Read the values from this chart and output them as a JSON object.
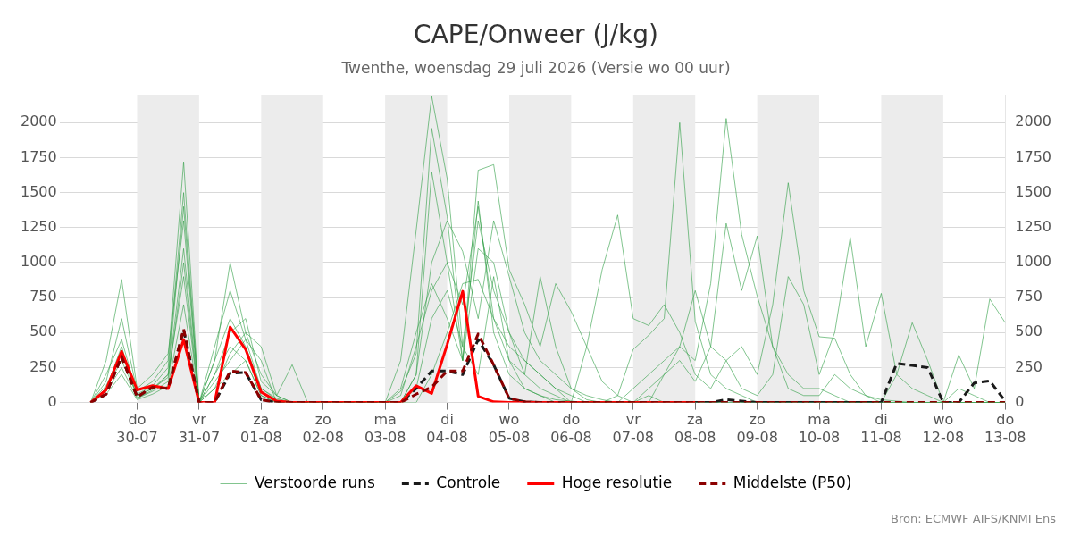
{
  "chart_data": {
    "type": "line",
    "title": "CAPE/Onweer (J/kg)",
    "subtitle": "Twenthe, woensdag 29 juli 2026 (Versie wo 00 uur)",
    "x": [
      "2026-07-29T06:00",
      "2026-07-29T12:00",
      "2026-07-29T18:00",
      "2026-07-30T00:00",
      "2026-07-30T06:00",
      "2026-07-30T12:00",
      "2026-07-30T18:00",
      "2026-07-31T00:00",
      "2026-07-31T06:00",
      "2026-07-31T12:00",
      "2026-07-31T18:00",
      "2026-08-01T00:00",
      "2026-08-01T06:00",
      "2026-08-01T12:00",
      "2026-08-01T18:00",
      "2026-08-02T00:00",
      "2026-08-02T06:00",
      "2026-08-02T12:00",
      "2026-08-02T18:00",
      "2026-08-03T00:00",
      "2026-08-03T06:00",
      "2026-08-03T12:00",
      "2026-08-03T18:00",
      "2026-08-04T00:00",
      "2026-08-04T06:00",
      "2026-08-04T12:00",
      "2026-08-04T18:00",
      "2026-08-05T00:00",
      "2026-08-05T06:00",
      "2026-08-05T12:00",
      "2026-08-05T18:00",
      "2026-08-06T00:00",
      "2026-08-06T06:00",
      "2026-08-06T12:00",
      "2026-08-06T18:00",
      "2026-08-07T00:00",
      "2026-08-07T06:00",
      "2026-08-07T12:00",
      "2026-08-07T18:00",
      "2026-08-08T00:00",
      "2026-08-08T06:00",
      "2026-08-08T12:00",
      "2026-08-08T18:00",
      "2026-08-09T00:00",
      "2026-08-09T06:00",
      "2026-08-09T12:00",
      "2026-08-09T18:00",
      "2026-08-10T00:00",
      "2026-08-10T06:00",
      "2026-08-10T12:00",
      "2026-08-10T18:00",
      "2026-08-11T00:00",
      "2026-08-11T06:00",
      "2026-08-11T12:00",
      "2026-08-11T18:00",
      "2026-08-12T00:00",
      "2026-08-12T06:00",
      "2026-08-12T12:00",
      "2026-08-12T18:00",
      "2026-08-13T00:00"
    ],
    "series": [
      {
        "name": "Verstoorde runs",
        "color": "#2e9e44",
        "values": [
          0,
          150,
          600,
          80,
          150,
          300,
          1720,
          0,
          300,
          600,
          400,
          100,
          20,
          0,
          0,
          0,
          0,
          0,
          0,
          0,
          300,
          1230,
          2190,
          1600,
          400,
          200,
          900,
          300,
          100,
          50,
          20,
          10,
          0,
          0,
          0,
          0,
          0,
          0,
          0,
          0,
          0,
          0,
          0,
          0,
          0,
          0,
          0,
          0,
          0,
          0,
          0,
          0,
          0,
          0,
          0,
          0,
          0,
          0,
          0,
          0
        ]
      },
      {
        "color": "#2e9e44",
        "values": [
          0,
          100,
          300,
          50,
          100,
          200,
          900,
          0,
          200,
          400,
          300,
          50,
          0,
          0,
          0,
          0,
          0,
          0,
          0,
          0,
          50,
          400,
          800,
          1000,
          700,
          1400,
          600,
          300,
          200,
          900,
          400,
          100,
          50,
          20,
          0,
          0,
          100,
          200,
          400,
          300,
          850,
          2030,
          1200,
          760,
          400,
          100,
          50,
          50,
          200,
          100,
          50,
          20,
          10,
          0,
          0,
          0,
          0,
          0,
          0,
          0
        ]
      },
      {
        "color": "#2e9e44",
        "values": [
          0,
          200,
          450,
          60,
          120,
          250,
          1500,
          0,
          100,
          350,
          500,
          200,
          50,
          0,
          0,
          0,
          0,
          0,
          0,
          0,
          0,
          200,
          1650,
          1000,
          300,
          1440,
          500,
          200,
          100,
          50,
          0,
          0,
          0,
          0,
          50,
          380,
          480,
          600,
          2000,
          580,
          200,
          100,
          50,
          0,
          0,
          0,
          0,
          0,
          0,
          0,
          0,
          0,
          0,
          0,
          0,
          0,
          0,
          0,
          0,
          0
        ]
      },
      {
        "color": "#2e9e44",
        "values": [
          0,
          120,
          350,
          50,
          100,
          180,
          1100,
          0,
          150,
          300,
          450,
          100,
          30,
          0,
          0,
          0,
          0,
          0,
          0,
          0,
          100,
          500,
          850,
          600,
          300,
          1660,
          1700,
          950,
          700,
          400,
          850,
          650,
          400,
          150,
          50,
          0,
          0,
          0,
          0,
          0,
          0,
          0,
          0,
          0,
          0,
          0,
          0,
          0,
          0,
          0,
          0,
          0,
          0,
          0,
          0,
          0,
          0,
          0,
          0,
          0
        ]
      },
      {
        "color": "#2e9e44",
        "values": [
          0,
          80,
          250,
          30,
          80,
          150,
          1000,
          0,
          300,
          1000,
          500,
          400,
          50,
          270,
          0,
          0,
          0,
          0,
          0,
          0,
          0,
          100,
          600,
          800,
          400,
          1300,
          800,
          500,
          200,
          100,
          50,
          0,
          400,
          950,
          1340,
          600,
          550,
          700,
          500,
          200,
          100,
          300,
          400,
          200,
          700,
          1570,
          800,
          470,
          460,
          200,
          50,
          0,
          0,
          0,
          0,
          0,
          0,
          0,
          0,
          0
        ]
      },
      {
        "color": "#2e9e44",
        "values": [
          0,
          60,
          200,
          20,
          60,
          120,
          700,
          0,
          100,
          200,
          300,
          50,
          0,
          0,
          0,
          0,
          0,
          0,
          0,
          0,
          0,
          0,
          200,
          500,
          850,
          880,
          600,
          400,
          300,
          200,
          100,
          50,
          0,
          0,
          0,
          0,
          0,
          200,
          300,
          150,
          400,
          300,
          100,
          50,
          200,
          900,
          700,
          200,
          500,
          1180,
          400,
          780,
          200,
          100,
          50,
          0,
          100,
          50,
          0,
          0
        ]
      },
      {
        "color": "#2e9e44",
        "values": [
          0,
          300,
          880,
          100,
          200,
          350,
          1300,
          0,
          400,
          800,
          450,
          300,
          0,
          0,
          0,
          0,
          0,
          0,
          0,
          0,
          0,
          200,
          1000,
          1300,
          1080,
          600,
          1300,
          900,
          500,
          300,
          200,
          100,
          20,
          0,
          0,
          0,
          50,
          0,
          0,
          0,
          0,
          0,
          0,
          0,
          0,
          0,
          0,
          0,
          0,
          0,
          0,
          0,
          200,
          570,
          300,
          0,
          340,
          100,
          740,
          570
        ]
      },
      {
        "color": "#2e9e44",
        "values": [
          0,
          100,
          400,
          30,
          90,
          200,
          1400,
          0,
          200,
          500,
          600,
          150,
          50,
          0,
          0,
          0,
          0,
          0,
          0,
          0,
          80,
          350,
          1960,
          1330,
          300,
          1100,
          1000,
          500,
          300,
          200,
          100,
          0,
          0,
          0,
          0,
          100,
          200,
          300,
          400,
          800,
          400,
          1280,
          800,
          1190,
          400,
          200,
          100,
          100,
          50,
          0,
          0,
          0,
          0,
          0,
          0,
          0,
          0,
          0,
          0,
          0
        ]
      },
      {
        "name": "Controle",
        "color": "#1a1a1a",
        "line_style": "dashed",
        "values": [
          0,
          60,
          330,
          40,
          110,
          100,
          520,
          0,
          0,
          210,
          215,
          20,
          0,
          0,
          0,
          0,
          0,
          0,
          0,
          0,
          0,
          100,
          225,
          225,
          200,
          450,
          270,
          30,
          5,
          0,
          0,
          0,
          0,
          0,
          0,
          0,
          0,
          0,
          0,
          0,
          0,
          20,
          10,
          0,
          0,
          0,
          0,
          0,
          0,
          0,
          0,
          0,
          280,
          265,
          250,
          0,
          0,
          140,
          155,
          10
        ]
      },
      {
        "name": "Hoge resolutie",
        "color": "#ff0000",
        "x": [
          "2026-07-29T06:00",
          "2026-07-29T12:00",
          "2026-07-29T18:00",
          "2026-07-30T00:00",
          "2026-07-30T06:00",
          "2026-07-30T12:00",
          "2026-07-30T18:00",
          "2026-07-31T00:00",
          "2026-07-31T06:00",
          "2026-07-31T12:00",
          "2026-07-31T18:00",
          "2026-08-01T00:00",
          "2026-08-01T06:00",
          "2026-08-01T12:00",
          "2026-08-01T18:00",
          "2026-08-02T00:00",
          "2026-08-02T06:00",
          "2026-08-02T12:00",
          "2026-08-02T18:00",
          "2026-08-03T00:00",
          "2026-08-03T06:00",
          "2026-08-03T12:00",
          "2026-08-03T18:00",
          "2026-08-04T00:00",
          "2026-08-04T06:00",
          "2026-08-04T12:00",
          "2026-08-04T18:00",
          "2026-08-05T00:00",
          "2026-08-05T06:00",
          "2026-08-05T12:00",
          "2026-08-05T18:00",
          "2026-08-06T00:00",
          "2026-08-06T06:00",
          "2026-08-06T12:00",
          "2026-08-06T18:00",
          "2026-08-07T00:00",
          "2026-08-07T06:00",
          "2026-08-07T12:00",
          "2026-08-07T18:00",
          "2026-08-08T00:00"
        ],
        "values": [
          0,
          90,
          365,
          90,
          120,
          100,
          450,
          0,
          0,
          540,
          380,
          75,
          10,
          0,
          0,
          0,
          0,
          0,
          0,
          0,
          0,
          120,
          65,
          415,
          795,
          45,
          5,
          0,
          0,
          0,
          0,
          0,
          0,
          0,
          0,
          0,
          0,
          0,
          0,
          0
        ]
      },
      {
        "name": "Middelste (P50)",
        "color": "#8b0000",
        "line_style": "dashed",
        "values": [
          0,
          60,
          330,
          40,
          110,
          100,
          525,
          0,
          0,
          225,
          215,
          20,
          0,
          0,
          0,
          0,
          0,
          0,
          0,
          0,
          0,
          60,
          110,
          225,
          225,
          490,
          270,
          30,
          5,
          0,
          0,
          0,
          0,
          0,
          0,
          0,
          0,
          0,
          0,
          0,
          0,
          0,
          0,
          0,
          0,
          0,
          0,
          0,
          0,
          0,
          0,
          0,
          0,
          0,
          0,
          0,
          0,
          0,
          0,
          0
        ]
      }
    ],
    "xlim": [
      "2026-07-28T18:00",
      "2026-08-13T00:00"
    ],
    "xticks": [
      {
        "value": "2026-07-30T00:00",
        "label": "do\n30-07"
      },
      {
        "value": "2026-07-31T00:00",
        "label": "vr\n31-07"
      },
      {
        "value": "2026-08-01T00:00",
        "label": "za\n01-08"
      },
      {
        "value": "2026-08-02T00:00",
        "label": "zo\n02-08"
      },
      {
        "value": "2026-08-03T00:00",
        "label": "ma\n03-08"
      },
      {
        "value": "2026-08-04T00:00",
        "label": "di\n04-08"
      },
      {
        "value": "2026-08-05T00:00",
        "label": "wo\n05-08"
      },
      {
        "value": "2026-08-06T00:00",
        "label": "do\n06-08"
      },
      {
        "value": "2026-08-07T00:00",
        "label": "vr\n07-08"
      },
      {
        "value": "2026-08-08T00:00",
        "label": "za\n08-08"
      },
      {
        "value": "2026-08-09T00:00",
        "label": "zo\n09-08"
      },
      {
        "value": "2026-08-10T00:00",
        "label": "ma\n10-08"
      },
      {
        "value": "2026-08-11T00:00",
        "label": "di\n11-08"
      },
      {
        "value": "2026-08-12T00:00",
        "label": "wo\n12-08"
      },
      {
        "value": "2026-08-13T00:00",
        "label": "do\n13-08"
      }
    ],
    "ylim": [
      0,
      2200
    ],
    "yticks": [
      0,
      250,
      500,
      750,
      1000,
      1250,
      1500,
      1750,
      2000
    ],
    "y2lim": [
      0,
      2200
    ],
    "y2ticks": [
      0,
      250,
      500,
      750,
      1000,
      1250,
      1500,
      1750,
      2000
    ],
    "bands": [
      {
        "axis": "x",
        "from": "2026-07-30T00:00",
        "to": "2026-07-31T00:00",
        "color": "#ececec"
      },
      {
        "axis": "x",
        "from": "2026-08-01T00:00",
        "to": "2026-08-02T00:00",
        "color": "#ececec"
      },
      {
        "axis": "x",
        "from": "2026-08-03T00:00",
        "to": "2026-08-04T00:00",
        "color": "#ececec"
      },
      {
        "axis": "x",
        "from": "2026-08-05T00:00",
        "to": "2026-08-06T00:00",
        "color": "#ececec"
      },
      {
        "axis": "x",
        "from": "2026-08-07T00:00",
        "to": "2026-08-08T00:00",
        "color": "#ececec"
      },
      {
        "axis": "x",
        "from": "2026-08-09T00:00",
        "to": "2026-08-10T00:00",
        "color": "#ececec"
      },
      {
        "axis": "x",
        "from": "2026-08-11T00:00",
        "to": "2026-08-12T00:00",
        "color": "#ececec"
      }
    ],
    "annotations": [
      "Bron: ECMWF AIFS/KNMI Ens"
    ],
    "grid": "y",
    "legend": "bottom",
    "marker": "none"
  }
}
